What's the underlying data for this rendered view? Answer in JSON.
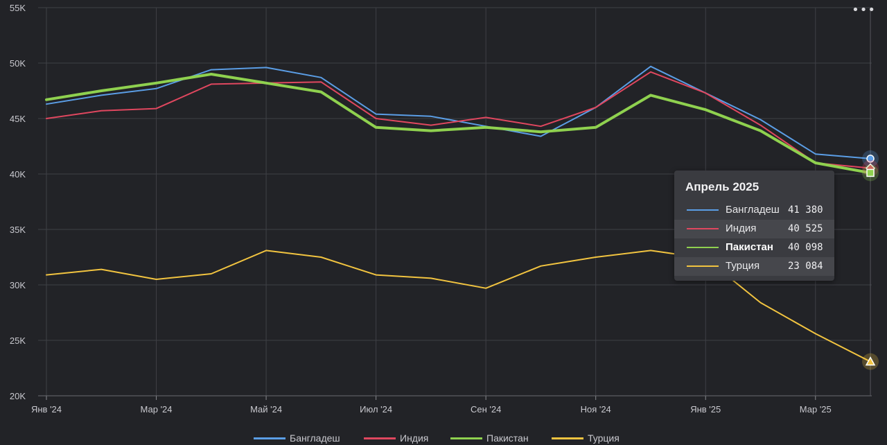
{
  "chart_data": {
    "type": "line",
    "title": "",
    "xlabel": "",
    "ylabel": "",
    "ylim": [
      20000,
      55000
    ],
    "yticks": [
      {
        "value": 20000,
        "label": "20K"
      },
      {
        "value": 25000,
        "label": "25K"
      },
      {
        "value": 30000,
        "label": "30K"
      },
      {
        "value": 35000,
        "label": "35K"
      },
      {
        "value": 40000,
        "label": "40K"
      },
      {
        "value": 45000,
        "label": "45K"
      },
      {
        "value": 50000,
        "label": "50K"
      },
      {
        "value": 55000,
        "label": "55K"
      }
    ],
    "categories": [
      "Янв 2024",
      "Фев 2024",
      "Мар 2024",
      "Апр 2024",
      "Май 2024",
      "Июн 2024",
      "Июл 2024",
      "Авг 2024",
      "Сен 2024",
      "Окт 2024",
      "Ноя 2024",
      "Дек 2024",
      "Янв 2025",
      "Фев 2025",
      "Мар 2025",
      "Апр 2025"
    ],
    "xticks": [
      {
        "index": 0,
        "label": "Янв '24"
      },
      {
        "index": 2,
        "label": "Мар '24"
      },
      {
        "index": 4,
        "label": "Май '24"
      },
      {
        "index": 6,
        "label": "Июл '24"
      },
      {
        "index": 8,
        "label": "Сен '24"
      },
      {
        "index": 10,
        "label": "Ноя '24"
      },
      {
        "index": 12,
        "label": "Янв '25"
      },
      {
        "index": 14,
        "label": "Мар '25"
      }
    ],
    "grid": true,
    "legend_position": "bottom",
    "series": [
      {
        "name": "Бангладеш",
        "color": "#5b9ee6",
        "marker": "circle",
        "values": [
          46300,
          47100,
          47700,
          49400,
          49600,
          48700,
          45400,
          45200,
          44300,
          43400,
          46000,
          49700,
          47300,
          44900,
          41800,
          41380
        ]
      },
      {
        "name": "Индия",
        "color": "#e0475f",
        "marker": "diamond",
        "values": [
          45000,
          45700,
          45900,
          48100,
          48200,
          48300,
          45000,
          44400,
          45100,
          44300,
          46000,
          49200,
          47300,
          44400,
          41000,
          40525
        ]
      },
      {
        "name": "Пакистан",
        "color": "#8fd14f",
        "marker": "square",
        "values": [
          46700,
          47500,
          48200,
          49000,
          48200,
          47400,
          44200,
          43900,
          44200,
          43800,
          44200,
          47100,
          45800,
          43900,
          41000,
          40098
        ]
      },
      {
        "name": "Турция",
        "color": "#f2c440",
        "marker": "triangle",
        "values": [
          30900,
          31400,
          30500,
          31000,
          33100,
          32500,
          30900,
          30600,
          29700,
          31700,
          32500,
          33100,
          32400,
          28400,
          25600,
          23084
        ]
      }
    ],
    "tooltip": {
      "title": "Апрель 2025",
      "highlighted": "Пакистан",
      "rows": [
        {
          "name": "Бангладеш",
          "value": "41 380"
        },
        {
          "name": "Индия",
          "value": "40 525"
        },
        {
          "name": "Пакистан",
          "value": "40 098"
        },
        {
          "name": "Турция",
          "value": "23 084"
        }
      ]
    }
  },
  "ui": {
    "menu_label": "•••"
  }
}
